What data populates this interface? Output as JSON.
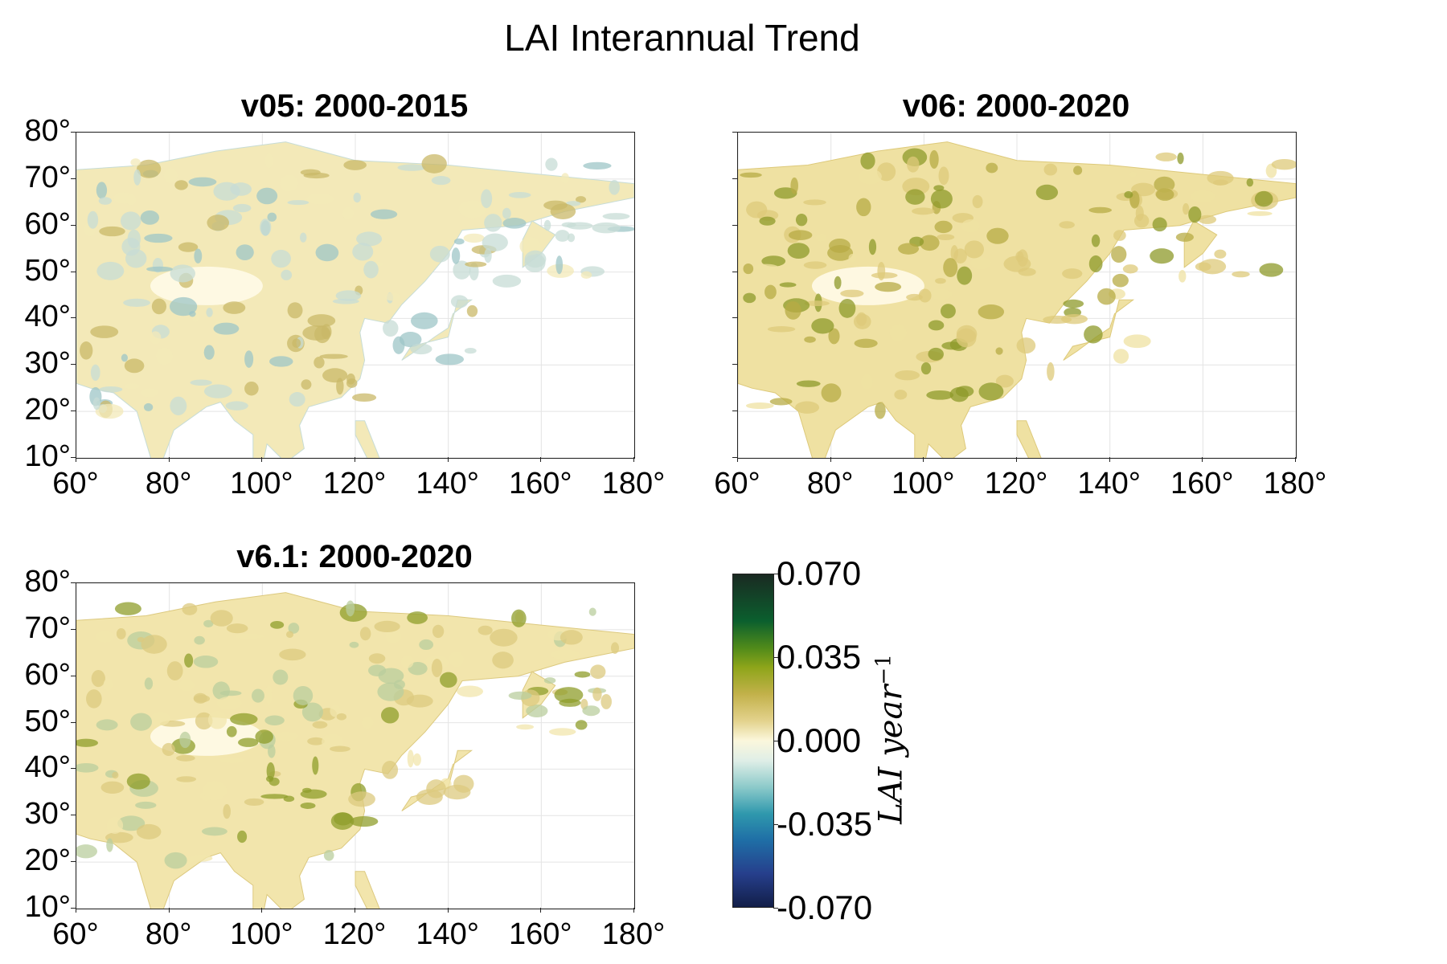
{
  "figure": {
    "title": "LAI Interannual Trend"
  },
  "panels": [
    {
      "id": "v05",
      "title": "v05: 2000-2015",
      "show_ylabels": true,
      "show_xlabels": true,
      "palette": "cool"
    },
    {
      "id": "v06",
      "title": "v06: 2000-2020",
      "show_ylabels": false,
      "show_xlabels": true,
      "palette": "green"
    },
    {
      "id": "v61",
      "title": "v6.1: 2000-2020",
      "show_ylabels": true,
      "show_xlabels": true,
      "palette": "mixed"
    }
  ],
  "axes": {
    "x_ticks": [
      "60°",
      "80°",
      "100°",
      "120°",
      "140°",
      "160°",
      "180°"
    ],
    "x_values": [
      60,
      80,
      100,
      120,
      140,
      160,
      180
    ],
    "y_ticks": [
      "80°",
      "70°",
      "60°",
      "50°",
      "40°",
      "30°",
      "20°",
      "10°"
    ],
    "y_values": [
      80,
      70,
      60,
      50,
      40,
      30,
      20,
      10
    ],
    "xlim": [
      60,
      180
    ],
    "ylim": [
      10,
      80
    ],
    "grid": true
  },
  "colorbar": {
    "ticks": [
      "0.070",
      "0.035",
      "0.000",
      "-0.035",
      "-0.070"
    ],
    "range": [
      -0.07,
      0.07
    ],
    "label": "LAI year",
    "label_exponent": "−1",
    "colors": {
      "high": "#1a2a22",
      "mid_high": "#8ea51a",
      "zero": "#fbf7dc",
      "mid_low": "#2f98ad",
      "low": "#121e48"
    }
  },
  "chart_data": {
    "type": "heatmap",
    "title": "LAI Interannual Trend",
    "variable": "LAI trend",
    "units": "LAI year^-1",
    "xlim": [
      60,
      180
    ],
    "ylim": [
      10,
      80
    ],
    "clim": [
      -0.07,
      0.07
    ],
    "series": [
      {
        "name": "v05: 2000-2015"
      },
      {
        "name": "v06: 2000-2020"
      },
      {
        "name": "v6.1: 2000-2020"
      }
    ]
  }
}
